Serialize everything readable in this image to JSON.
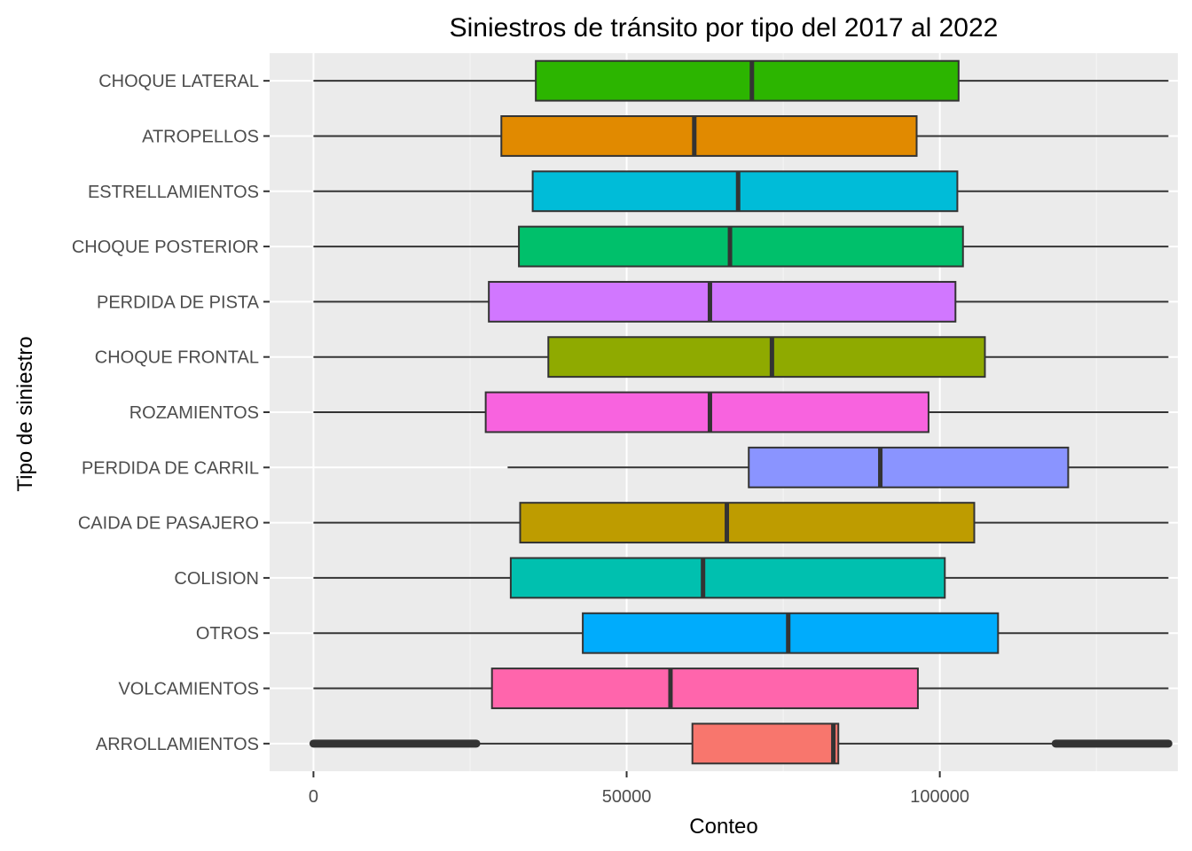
{
  "chart_data": {
    "type": "boxplot",
    "title": "Siniestros de tránsito por tipo del 2017 al 2022",
    "xlabel": "Conteo",
    "ylabel": "Tipo de siniestro",
    "xlim": [
      -7000,
      138000
    ],
    "x_ticks": [
      0,
      50000,
      100000
    ],
    "x_tick_labels": [
      "0",
      "50000",
      "100000"
    ],
    "grid": true,
    "legend": "none",
    "categories": [
      "CHOQUE LATERAL",
      "ATROPELLOS",
      "ESTRELLAMIENTOS",
      "CHOQUE POSTERIOR",
      "PERDIDA DE PISTA",
      "CHOQUE FRONTAL",
      "ROZAMIENTOS",
      "PERDIDA DE CARRIL",
      "CAIDA DE PASAJERO",
      "COLISION",
      "OTROS",
      "VOLCAMIENTOS",
      "ARROLLAMIENTOS"
    ],
    "boxes": [
      {
        "category": "CHOQUE LATERAL",
        "whisker_low": 0,
        "q1": 35500,
        "median": 70000,
        "q3": 103000,
        "whisker_high": 136500,
        "color": "#2CB500"
      },
      {
        "category": "ATROPELLOS",
        "whisker_low": 0,
        "q1": 30000,
        "median": 60800,
        "q3": 96300,
        "whisker_high": 136500,
        "color": "#E18A00"
      },
      {
        "category": "ESTRELLAMIENTOS",
        "whisker_low": 0,
        "q1": 35000,
        "median": 67800,
        "q3": 102800,
        "whisker_high": 136500,
        "color": "#00BCD8"
      },
      {
        "category": "CHOQUE POSTERIOR",
        "whisker_low": 0,
        "q1": 32800,
        "median": 66500,
        "q3": 103700,
        "whisker_high": 136500,
        "color": "#00C06B"
      },
      {
        "category": "PERDIDA DE PISTA",
        "whisker_low": 0,
        "q1": 28000,
        "median": 63300,
        "q3": 102500,
        "whisker_high": 136500,
        "color": "#D177FF"
      },
      {
        "category": "CHOQUE FRONTAL",
        "whisker_low": 0,
        "q1": 37500,
        "median": 73200,
        "q3": 107200,
        "whisker_high": 136500,
        "color": "#8FAA00"
      },
      {
        "category": "ROZAMIENTOS",
        "whisker_low": 0,
        "q1": 27500,
        "median": 63300,
        "q3": 98200,
        "whisker_high": 136500,
        "color": "#F863DF"
      },
      {
        "category": "PERDIDA DE CARRIL",
        "whisker_low": 31000,
        "q1": 69500,
        "median": 90500,
        "q3": 120500,
        "whisker_high": 136500,
        "color": "#8A94FF"
      },
      {
        "category": "CAIDA DE PASAJERO",
        "whisker_low": 0,
        "q1": 33000,
        "median": 66000,
        "q3": 105500,
        "whisker_high": 136500,
        "color": "#BE9C00"
      },
      {
        "category": "COLISION",
        "whisker_low": 0,
        "q1": 31500,
        "median": 62200,
        "q3": 100800,
        "whisker_high": 136500,
        "color": "#00C0AF"
      },
      {
        "category": "OTROS",
        "whisker_low": 0,
        "q1": 43000,
        "median": 75800,
        "q3": 109300,
        "whisker_high": 136500,
        "color": "#00ACFC"
      },
      {
        "category": "VOLCAMIENTOS",
        "whisker_low": 0,
        "q1": 28500,
        "median": 57000,
        "q3": 96500,
        "whisker_high": 136500,
        "color": "#FF65AC"
      },
      {
        "category": "ARROLLAMIENTOS",
        "whisker_low": 26000,
        "q1": 60500,
        "median": 83000,
        "q3": 83800,
        "whisker_high": 118500,
        "color": "#F8766D",
        "outlier_ranges": [
          [
            0,
            26000
          ],
          [
            118500,
            136500
          ]
        ]
      }
    ]
  }
}
